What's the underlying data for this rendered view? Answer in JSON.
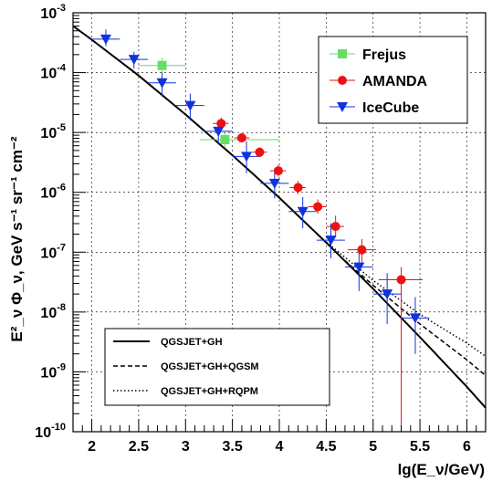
{
  "chart_data": {
    "type": "scatter",
    "xlabel": "lg(E_ν/GeV)",
    "ylabel": "E²_ν Φ_ν, GeV s⁻¹ sr⁻¹ cm⁻²",
    "xlim": [
      1.8,
      6.2
    ],
    "ylim_log10": [
      -10,
      -3
    ],
    "y_scale": "log",
    "grid": true,
    "x_ticks": [
      "2",
      "2.5",
      "3",
      "3.5",
      "4",
      "4.5",
      "5",
      "5.5",
      "6"
    ],
    "y_ticks": [
      {
        "base": "10",
        "exp": "-3"
      },
      {
        "base": "10",
        "exp": "-4"
      },
      {
        "base": "10",
        "exp": "-5"
      },
      {
        "base": "10",
        "exp": "-6"
      },
      {
        "base": "10",
        "exp": "-7"
      },
      {
        "base": "10",
        "exp": "-8"
      },
      {
        "base": "10",
        "exp": "-9"
      },
      {
        "base": "10",
        "exp": "-10"
      }
    ],
    "legend_markers": {
      "placement": "top-right",
      "items": [
        {
          "name": "Frejus",
          "color": "#66dd66",
          "marker": "square"
        },
        {
          "name": "AMANDA",
          "color": "#ee1111",
          "marker": "circle"
        },
        {
          "name": "IceCube",
          "color": "#1133dd",
          "marker": "triangle-down"
        }
      ]
    },
    "legend_lines": {
      "placement": "bottom-left",
      "items": [
        {
          "name": "QGSJET+GH",
          "style": "solid"
        },
        {
          "name": "QGSJET+GH+QGSM",
          "style": "dashed"
        },
        {
          "name": "QGSJET+GH+RQPM",
          "style": "dotted"
        }
      ]
    },
    "series": [
      {
        "name": "Frejus",
        "color": "#66dd66",
        "marker": "square",
        "points": [
          {
            "x": 2.75,
            "y": -3.88,
            "xlo": 2.5,
            "xhi": 3.0,
            "ylo": -4.0,
            "yhi": -3.75
          },
          {
            "x": 3.42,
            "y": -5.12,
            "xlo": 3.15,
            "xhi": 4.0,
            "ylo": -5.25,
            "yhi": -5.0
          }
        ]
      },
      {
        "name": "AMANDA",
        "color": "#ee1111",
        "marker": "circle",
        "points": [
          {
            "x": 3.38,
            "y": -4.85,
            "xlo": 3.29,
            "xhi": 3.46,
            "ylo": -4.95,
            "yhi": -4.75
          },
          {
            "x": 3.6,
            "y": -5.09,
            "xlo": 3.52,
            "xhi": 3.68,
            "ylo": -5.17,
            "yhi": -5.02
          },
          {
            "x": 3.79,
            "y": -5.33,
            "xlo": 3.71,
            "xhi": 3.87,
            "ylo": -5.41,
            "yhi": -5.25
          },
          {
            "x": 3.99,
            "y": -5.64,
            "xlo": 3.9,
            "xhi": 4.07,
            "ylo": -5.74,
            "yhi": -5.54
          },
          {
            "x": 4.2,
            "y": -5.92,
            "xlo": 4.11,
            "xhi": 4.28,
            "ylo": -6.03,
            "yhi": -5.81
          },
          {
            "x": 4.41,
            "y": -6.24,
            "xlo": 4.31,
            "xhi": 4.5,
            "ylo": -6.36,
            "yhi": -6.12
          },
          {
            "x": 4.6,
            "y": -6.57,
            "xlo": 4.5,
            "xhi": 4.69,
            "ylo": -6.75,
            "yhi": -6.39
          },
          {
            "x": 4.88,
            "y": -6.96,
            "xlo": 4.73,
            "xhi": 5.03,
            "ylo": -7.25,
            "yhi": -6.78
          },
          {
            "x": 5.3,
            "y": -7.46,
            "xlo": 5.06,
            "xhi": 5.53,
            "ylo": -10.0,
            "yhi": -7.25
          }
        ]
      },
      {
        "name": "IceCube",
        "color": "#1133dd",
        "marker": "triangle-down",
        "points": [
          {
            "x": 2.15,
            "y": -3.44,
            "xlo": 2.0,
            "xhi": 2.3,
            "ylo": -3.56,
            "yhi": -3.28
          },
          {
            "x": 2.45,
            "y": -3.78,
            "xlo": 2.3,
            "xhi": 2.6,
            "ylo": -3.93,
            "yhi": -3.65
          },
          {
            "x": 2.75,
            "y": -4.17,
            "xlo": 2.6,
            "xhi": 2.9,
            "ylo": -4.4,
            "yhi": -4.0
          },
          {
            "x": 3.05,
            "y": -4.55,
            "xlo": 2.9,
            "xhi": 3.2,
            "ylo": -4.8,
            "yhi": -4.35
          },
          {
            "x": 3.35,
            "y": -4.98,
            "xlo": 3.2,
            "xhi": 3.5,
            "ylo": -5.2,
            "yhi": -4.8
          },
          {
            "x": 3.65,
            "y": -5.4,
            "xlo": 3.5,
            "xhi": 3.8,
            "ylo": -5.68,
            "yhi": -5.15
          },
          {
            "x": 3.95,
            "y": -5.85,
            "xlo": 3.8,
            "xhi": 4.1,
            "ylo": -6.1,
            "yhi": -5.6
          },
          {
            "x": 4.25,
            "y": -6.32,
            "xlo": 4.1,
            "xhi": 4.4,
            "ylo": -6.6,
            "yhi": -6.08
          },
          {
            "x": 4.55,
            "y": -6.8,
            "xlo": 4.4,
            "xhi": 4.7,
            "ylo": -7.1,
            "yhi": -6.52
          },
          {
            "x": 4.85,
            "y": -7.25,
            "xlo": 4.7,
            "xhi": 5.0,
            "ylo": -7.65,
            "yhi": -6.9
          },
          {
            "x": 5.15,
            "y": -7.7,
            "xlo": 5.0,
            "xhi": 5.3,
            "ylo": -8.2,
            "yhi": -7.35
          },
          {
            "x": 5.45,
            "y": -8.1,
            "xlo": 5.3,
            "xhi": 5.6,
            "ylo": -8.7,
            "yhi": -7.75
          }
        ]
      }
    ],
    "curves": [
      {
        "name": "QGSJET+GH",
        "style": "solid",
        "x": [
          1.8,
          2.0,
          2.5,
          3.0,
          3.5,
          4.0,
          4.5,
          5.0,
          5.5,
          6.0,
          6.2
        ],
        "y": [
          -3.22,
          -3.45,
          -4.05,
          -4.7,
          -5.38,
          -6.09,
          -6.84,
          -7.61,
          -8.42,
          -9.25,
          -9.6
        ]
      },
      {
        "name": "QGSJET+GH+QGSM",
        "style": "dashed",
        "x": [
          4.7,
          5.0,
          5.5,
          6.0,
          6.2
        ],
        "y": [
          -7.14,
          -7.55,
          -8.2,
          -8.8,
          -9.06
        ]
      },
      {
        "name": "QGSJET+GH+RQPM",
        "style": "dotted",
        "x": [
          4.5,
          5.0,
          5.5,
          6.0,
          6.2
        ],
        "y": [
          -6.83,
          -7.47,
          -8.04,
          -8.52,
          -8.74
        ]
      }
    ]
  }
}
